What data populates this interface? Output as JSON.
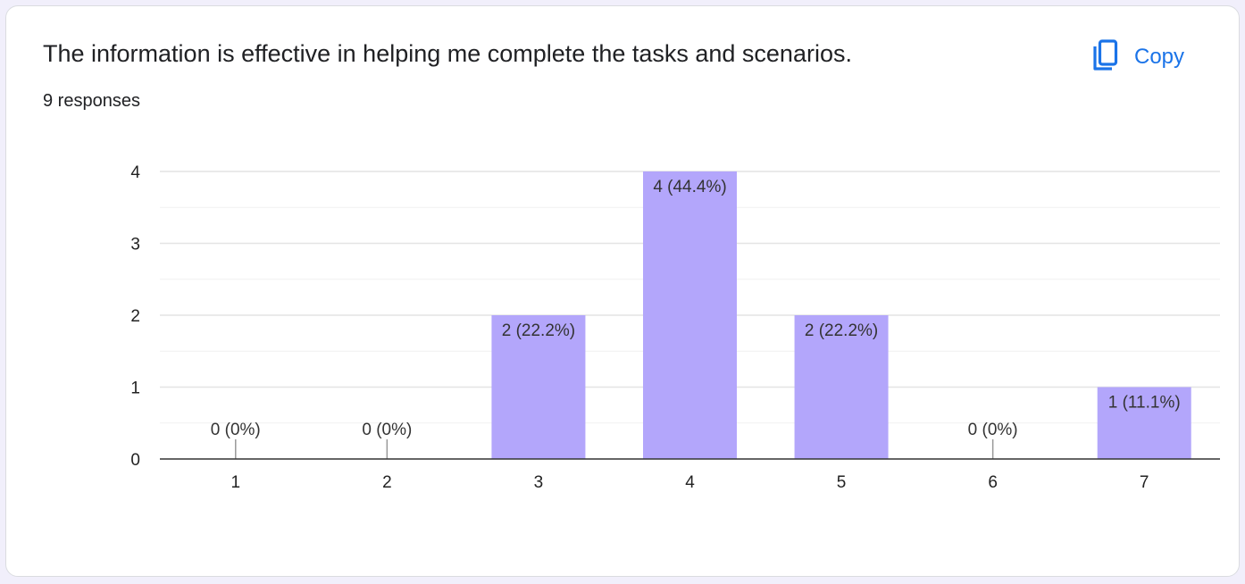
{
  "card": {
    "title": "The information is effective in helping me complete the tasks and scenarios.",
    "responses": "9 responses",
    "copy_label": "Copy"
  },
  "colors": {
    "bar": "#b3a6fb",
    "accent": "#1a73e8",
    "text": "#202124"
  },
  "icons": {
    "copy": "copy-icon"
  },
  "chart_data": {
    "type": "bar",
    "categories": [
      "1",
      "2",
      "3",
      "4",
      "5",
      "6",
      "7"
    ],
    "values": [
      0,
      0,
      2,
      4,
      2,
      0,
      1
    ],
    "data_labels": [
      "0 (0%)",
      "0 (0%)",
      "2 (22.2%)",
      "4 (44.4%)",
      "2 (22.2%)",
      "0 (0%)",
      "1 (11.1%)"
    ],
    "y_ticks": [
      0,
      1,
      2,
      3,
      4
    ],
    "ylim": [
      0,
      4
    ],
    "grid": true,
    "legend": "none"
  }
}
